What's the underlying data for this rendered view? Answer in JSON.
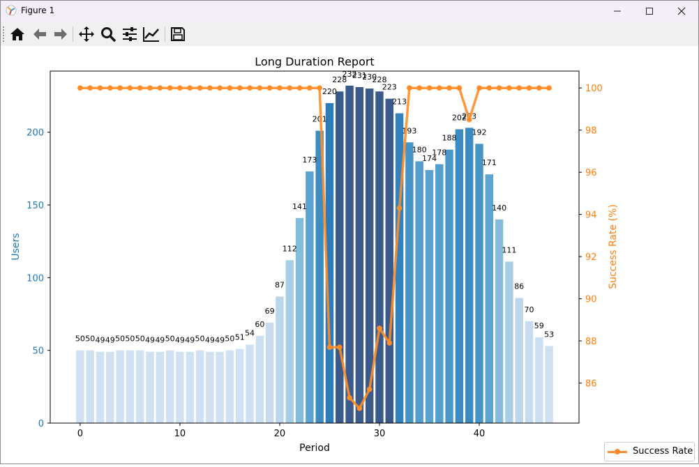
{
  "window": {
    "title": "Figure 1",
    "buttons": [
      "minimize",
      "maximize",
      "close"
    ]
  },
  "toolbar": {
    "tools": [
      {
        "name": "home-icon"
      },
      {
        "name": "back-arrow-icon"
      },
      {
        "name": "forward-arrow-icon"
      },
      {
        "name": "pan-move-icon"
      },
      {
        "name": "zoom-magnifier-icon"
      },
      {
        "name": "configure-subplots-icon"
      },
      {
        "name": "edit-axis-icon"
      },
      {
        "name": "save-floppy-icon"
      }
    ]
  },
  "chart_data": {
    "type": "bar",
    "title": "Long Duration Report",
    "xlabel": "Period",
    "ylabel": "Users",
    "y2label": "Success Rate (%)",
    "xlim": [
      -3,
      50
    ],
    "ylim": [
      0,
      242
    ],
    "y2lim": [
      84.1,
      100.8
    ],
    "xticks": [
      0,
      10,
      20,
      30,
      40
    ],
    "yticks": [
      0,
      50,
      100,
      150,
      200
    ],
    "y2ticks": [
      86,
      88,
      90,
      92,
      94,
      96,
      98,
      100
    ],
    "x": [
      0,
      1,
      2,
      3,
      4,
      5,
      6,
      7,
      8,
      9,
      10,
      11,
      12,
      13,
      14,
      15,
      16,
      17,
      18,
      19,
      20,
      21,
      22,
      23,
      24,
      25,
      26,
      27,
      28,
      29,
      30,
      31,
      32,
      33,
      34,
      35,
      36,
      37,
      38,
      39,
      40,
      41,
      42,
      43,
      44,
      45,
      46,
      47
    ],
    "series": [
      {
        "name": "Users",
        "type": "bar",
        "axis": "left",
        "values": [
          50,
          50,
          49,
          49,
          50,
          50,
          50,
          49,
          49,
          50,
          49,
          49,
          50,
          49,
          49,
          50,
          51,
          54,
          60,
          69,
          87,
          112,
          141,
          173,
          201,
          220,
          228,
          232,
          231,
          230,
          228,
          223,
          213,
          193,
          180,
          174,
          178,
          188,
          202,
          203,
          192,
          171,
          140,
          111,
          86,
          70,
          59,
          53
        ]
      },
      {
        "name": "Success Rate",
        "type": "line",
        "axis": "right",
        "color": "#ff8c27",
        "values": [
          100,
          100,
          100,
          100,
          100,
          100,
          100,
          100,
          100,
          100,
          100,
          100,
          100,
          100,
          100,
          100,
          100,
          100,
          100,
          100,
          100,
          100,
          100,
          100,
          100,
          87.7,
          87.7,
          85.3,
          84.8,
          85.7,
          88.6,
          87.9,
          94.3,
          100,
          100,
          100,
          100,
          100,
          100,
          98.5,
          100,
          100,
          100,
          100,
          100,
          100,
          100,
          100
        ]
      }
    ],
    "legend": {
      "placement": "bottom-right",
      "entries": [
        "Success Rate"
      ]
    },
    "bar_colormap": "Blues",
    "colors": {
      "left_axis": "#1f77b4",
      "right_axis": "#ff7f0e",
      "line": "#ff8c27"
    },
    "grid": false
  }
}
